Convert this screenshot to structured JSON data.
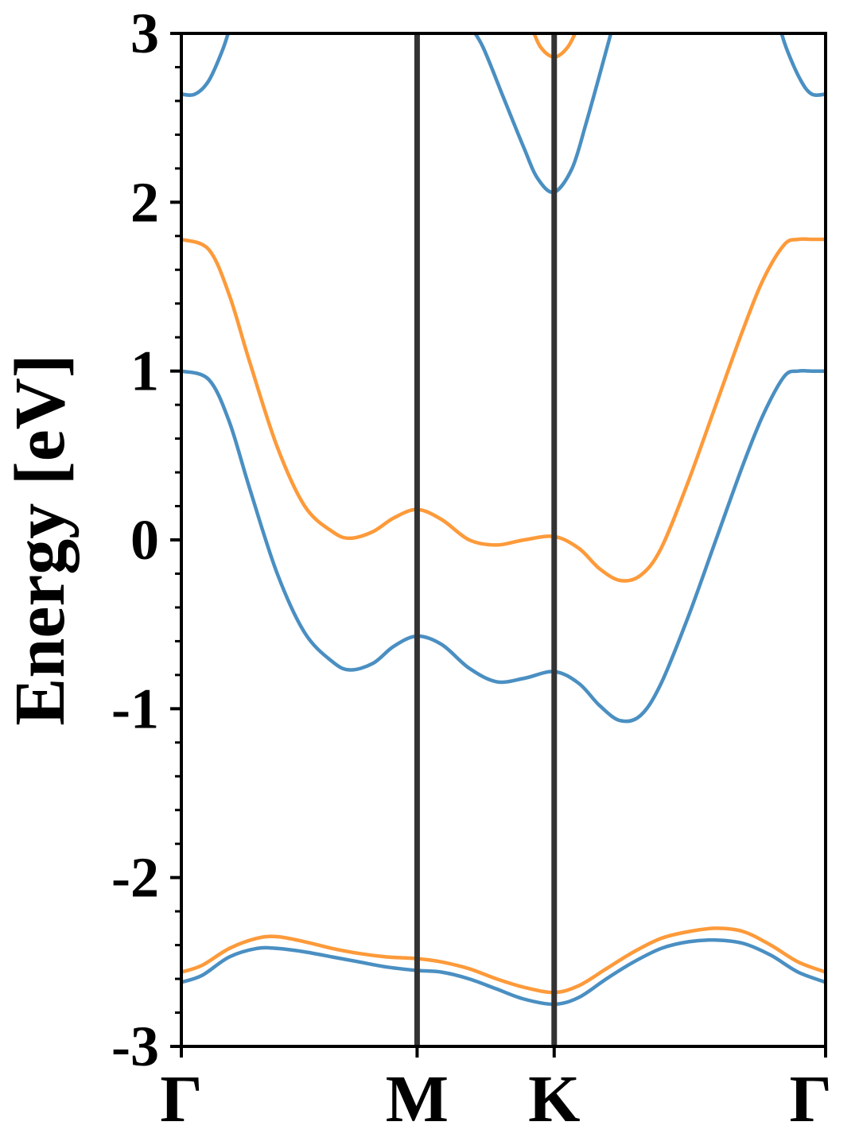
{
  "chart_data": {
    "type": "line",
    "title": "",
    "xlabel": "",
    "ylabel": "Energy [eV]",
    "xlim": [
      0,
      4.7
    ],
    "ylim": [
      -3,
      3
    ],
    "grid": false,
    "legend": "none",
    "x_ticks": [
      {
        "label": "Γ",
        "x": 0
      },
      {
        "label": "M",
        "x": 1.72
      },
      {
        "label": "K",
        "x": 2.72
      },
      {
        "label": "Γ",
        "x": 4.7
      }
    ],
    "y_ticks": [
      {
        "label": "-3",
        "y": -3
      },
      {
        "label": "-2",
        "y": -2
      },
      {
        "label": "-1",
        "y": -1
      },
      {
        "label": "0",
        "y": 0
      },
      {
        "label": "1",
        "y": 1
      },
      {
        "label": "2",
        "y": 2
      },
      {
        "label": "3",
        "y": 3
      }
    ],
    "y_minor_step": 0.2,
    "high_symmetry_lines": [
      1.72,
      2.72
    ],
    "colors": {
      "blue": "#4a8fc2",
      "orange": "#fd9a3a",
      "vline": "#333333"
    },
    "series": [
      {
        "color": "blue",
        "x": [
          0,
          0.2,
          0.35,
          0.5,
          0.7,
          0.9,
          1.1,
          1.23,
          1.4,
          1.55,
          1.72,
          1.9,
          2.1,
          2.3,
          2.5,
          2.72,
          2.9,
          3.05,
          3.2,
          3.35,
          3.5,
          3.7,
          3.9,
          4.1,
          4.25,
          4.4,
          4.5,
          4.6,
          4.7
        ],
        "y": [
          1.0,
          0.95,
          0.7,
          0.3,
          -0.2,
          -0.55,
          -0.72,
          -0.77,
          -0.73,
          -0.63,
          -0.57,
          -0.62,
          -0.76,
          -0.84,
          -0.82,
          -0.78,
          -0.85,
          -0.98,
          -1.07,
          -1.04,
          -0.85,
          -0.45,
          0.0,
          0.45,
          0.75,
          0.97,
          1.0,
          1.0,
          1.0
        ]
      },
      {
        "color": "orange",
        "x": [
          0,
          0.2,
          0.35,
          0.5,
          0.7,
          0.9,
          1.1,
          1.23,
          1.4,
          1.55,
          1.72,
          1.9,
          2.1,
          2.3,
          2.5,
          2.72,
          2.9,
          3.05,
          3.2,
          3.35,
          3.5,
          3.7,
          3.9,
          4.1,
          4.25,
          4.4,
          4.5,
          4.6,
          4.7
        ],
        "y": [
          1.78,
          1.72,
          1.45,
          1.05,
          0.55,
          0.2,
          0.05,
          0.01,
          0.05,
          0.13,
          0.18,
          0.12,
          0.0,
          -0.03,
          0.0,
          0.02,
          -0.05,
          -0.17,
          -0.24,
          -0.21,
          -0.05,
          0.35,
          0.8,
          1.25,
          1.55,
          1.75,
          1.78,
          1.78,
          1.78
        ]
      },
      {
        "color": "blue",
        "x": [
          0,
          0.15,
          0.35,
          0.55,
          0.7,
          0.9,
          1.1,
          1.3,
          1.5,
          1.72,
          1.9,
          2.1,
          2.3,
          2.5,
          2.72,
          2.9,
          3.1,
          3.3,
          3.5,
          3.7,
          3.9,
          4.1,
          4.3,
          4.5,
          4.7
        ],
        "y": [
          -2.62,
          -2.58,
          -2.47,
          -2.42,
          -2.42,
          -2.44,
          -2.47,
          -2.5,
          -2.53,
          -2.55,
          -2.56,
          -2.6,
          -2.66,
          -2.72,
          -2.75,
          -2.71,
          -2.6,
          -2.5,
          -2.42,
          -2.38,
          -2.37,
          -2.39,
          -2.46,
          -2.56,
          -2.62
        ]
      },
      {
        "color": "orange",
        "x": [
          0,
          0.15,
          0.35,
          0.55,
          0.7,
          0.9,
          1.1,
          1.3,
          1.5,
          1.72,
          1.9,
          2.1,
          2.3,
          2.5,
          2.72,
          2.9,
          3.1,
          3.3,
          3.5,
          3.7,
          3.9,
          4.1,
          4.3,
          4.5,
          4.7
        ],
        "y": [
          -2.56,
          -2.52,
          -2.42,
          -2.36,
          -2.35,
          -2.38,
          -2.42,
          -2.45,
          -2.47,
          -2.48,
          -2.5,
          -2.54,
          -2.6,
          -2.65,
          -2.68,
          -2.64,
          -2.54,
          -2.44,
          -2.36,
          -2.32,
          -2.3,
          -2.32,
          -2.4,
          -2.5,
          -2.56
        ]
      },
      {
        "color": "blue",
        "x": [
          0,
          0.1,
          0.2,
          0.3,
          0.36
        ],
        "y": [
          2.64,
          2.64,
          2.72,
          2.9,
          3.05
        ]
      },
      {
        "color": "blue",
        "x": [
          2.1,
          2.2,
          2.35,
          2.5,
          2.6,
          2.72,
          2.85,
          2.95,
          3.05,
          3.15
        ],
        "y": [
          3.05,
          2.92,
          2.62,
          2.32,
          2.14,
          2.06,
          2.2,
          2.46,
          2.75,
          3.05
        ]
      },
      {
        "color": "orange",
        "x": [
          2.55,
          2.62,
          2.72,
          2.82,
          2.9
        ],
        "y": [
          3.05,
          2.92,
          2.86,
          2.92,
          3.05
        ]
      },
      {
        "color": "blue",
        "x": [
          4.36,
          4.42,
          4.52,
          4.6,
          4.7
        ],
        "y": [
          3.05,
          2.9,
          2.72,
          2.64,
          2.64
        ]
      }
    ]
  }
}
